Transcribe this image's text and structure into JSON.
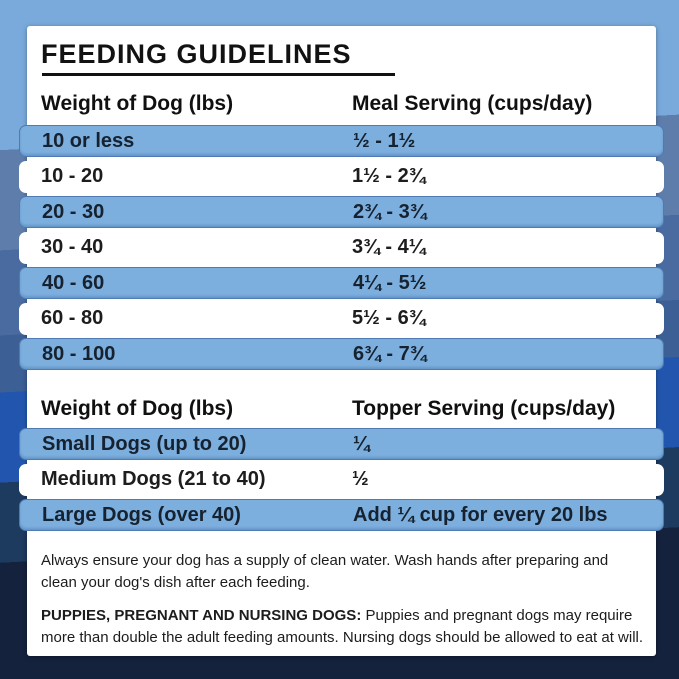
{
  "title": "FEEDING GUIDELINES",
  "meal_table": {
    "col1_header": "Weight of Dog (lbs)",
    "col2_header": "Meal Serving (cups/day)",
    "rows": [
      {
        "weight": "10 or less",
        "serving": "½ - 1½"
      },
      {
        "weight": "10 - 20",
        "serving": "1½ - 2¾"
      },
      {
        "weight": "20 - 30",
        "serving": "2¾ - 3¾"
      },
      {
        "weight": "30 - 40",
        "serving": "3¾ - 4¼"
      },
      {
        "weight": "40 - 60",
        "serving": "4¼ - 5½"
      },
      {
        "weight": "60 - 80",
        "serving": "5½ - 6¾"
      },
      {
        "weight": "80 - 100",
        "serving": "6¾ - 7¾"
      }
    ]
  },
  "topper_table": {
    "col1_header": "Weight of Dog (lbs)",
    "col2_header": "Topper Serving (cups/day)",
    "rows": [
      {
        "weight": "Small Dogs (up to 20)",
        "serving": "¼"
      },
      {
        "weight": "Medium Dogs (21 to 40)",
        "serving": "½"
      },
      {
        "weight": "Large Dogs (over 40)",
        "serving": "Add ¼ cup for every 20 lbs"
      }
    ]
  },
  "footnotes": {
    "water_note": "Always ensure your dog has a supply of clean water. Wash hands after preparing and clean your dog's dish after each feeding.",
    "puppies_label": "PUPPIES, PREGNANT AND NURSING DOGS:",
    "puppies_note": " Puppies and pregnant dogs may require more than double the adult feeding amounts. Nursing dogs should be allowed to eat at will."
  },
  "colors": {
    "stripe_blue": "#7caede",
    "stripe_border": "#4f7ab3",
    "card_background": "#ffffff",
    "band_light_blue": "#79aadb",
    "band_gray_blue": "#5e7dab",
    "band_slate_blue": "#4a6ba0",
    "band_deep_slate": "#3c5f95",
    "band_royal_blue": "#2256ae",
    "band_dark_navy": "#1d3a5f",
    "band_darkest_navy": "#15223e"
  }
}
